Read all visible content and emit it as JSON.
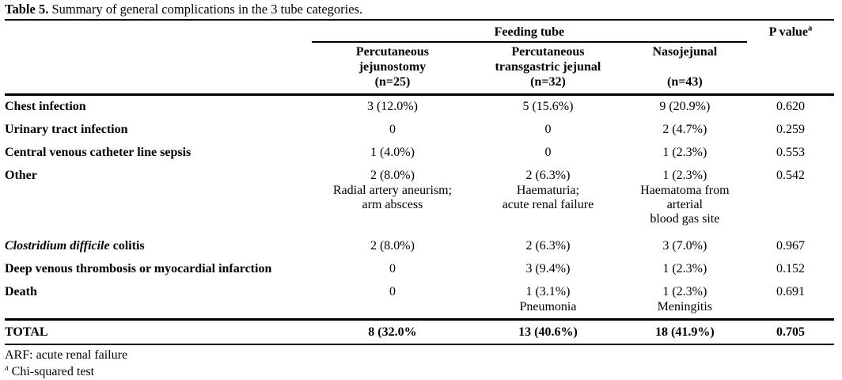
{
  "title": {
    "label": "Table 5.",
    "caption": " Summary of general complications in the 3 tube categories."
  },
  "header": {
    "group_label": "Feeding tube",
    "p_value_label": "P value",
    "p_value_superscript": "a",
    "columns": [
      {
        "line1": "Percutaneous",
        "line2": "jejunostomy",
        "n": "(n=25)"
      },
      {
        "line1": "Percutaneous",
        "line2": "transgastric jejunal",
        "n": "(n=32)"
      },
      {
        "line1": "Nasojejunal",
        "line2": "",
        "n": "(n=43)"
      }
    ]
  },
  "rows": [
    {
      "label": "Chest infection",
      "c1": "3 (12.0%)",
      "c2": "5 (15.6%)",
      "c3": "9 (20.9%)",
      "p": "0.620"
    },
    {
      "label": "Urinary tract infection",
      "c1": "0",
      "c2": "0",
      "c3": "2 (4.7%)",
      "p": "0.259"
    },
    {
      "label": "Central venous catheter line sepsis",
      "c1": "1 (4.0%)",
      "c2": "0",
      "c3": "1 (2.3%)",
      "p": "0.553"
    },
    {
      "label": "Other",
      "c1": "2 (8.0%)",
      "c1_note": "Radial artery aneurism;\narm abscess",
      "c2": "2 (6.3%)",
      "c2_note": "Haematuria;\nacute renal failure",
      "c3": "1 (2.3%)",
      "c3_note": "Haematoma from arterial\nblood gas site",
      "p": "0.542"
    },
    {
      "label_italic": "Clostridium difficile",
      "label_rest": " colitis",
      "c1": "2 (8.0%)",
      "c2": "2 (6.3%)",
      "c3": "3 (7.0%)",
      "p": "0.967"
    },
    {
      "label": "Deep venous thrombosis or myocardial infarction",
      "c1": "0",
      "c2": "3 (9.4%)",
      "c3": "1 (2.3%)",
      "p": "0.152"
    },
    {
      "label": "Death",
      "c1": "0",
      "c2": "1 (3.1%)",
      "c2_note": "Pneumonia",
      "c3": "1 (2.3%)",
      "c3_note": "Meningitis",
      "p": "0.691"
    }
  ],
  "total": {
    "label": "TOTAL",
    "c1": "8 (32.0%",
    "c2": "13 (40.6%)",
    "c3": "18 (41.9%)",
    "p": "0.705"
  },
  "footnotes": {
    "arf": "ARF: acute renal failure",
    "chi_superscript": "a",
    "chi_text": " Chi-squared test"
  }
}
